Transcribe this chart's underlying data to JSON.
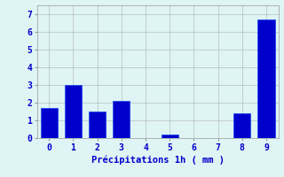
{
  "categories": [
    0,
    1,
    2,
    3,
    4,
    5,
    6,
    7,
    8,
    9
  ],
  "values": [
    1.7,
    3.0,
    1.5,
    2.1,
    0.0,
    0.2,
    0.0,
    0.0,
    1.4,
    6.7
  ],
  "bar_color": "#0000cc",
  "bar_edge_color": "#1144ee",
  "background_color": "#dff4f4",
  "grid_color": "#b0b0b0",
  "xlabel": "Précipitations 1h ( mm )",
  "xlabel_color": "#0000cc",
  "tick_color": "#0000cc",
  "ylim": [
    0,
    7.5
  ],
  "yticks": [
    0,
    1,
    2,
    3,
    4,
    5,
    6,
    7
  ],
  "xlim": [
    -0.5,
    9.5
  ],
  "bar_width": 0.7
}
